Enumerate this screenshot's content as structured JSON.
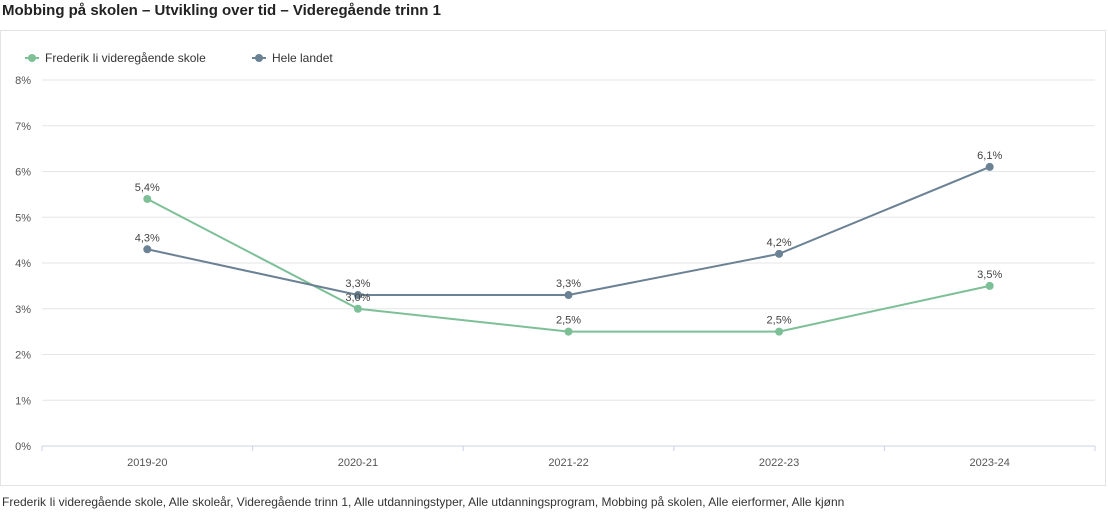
{
  "title": "Mobbing på skolen – Utvikling over tid – Videregående trinn 1",
  "footer": "Frederik Ii videregående skole, Alle skoleår, Videregående trinn 1, Alle utdanningstyper, Alle utdanningsprogram, Mobbing på skolen, Alle eierformer, Alle kjønn",
  "chart_data": {
    "type": "line",
    "categories": [
      "2019-20",
      "2020-21",
      "2021-22",
      "2022-23",
      "2023-24"
    ],
    "series": [
      {
        "name": "Frederik Ii videregående skole",
        "color": "#7dbf96",
        "values": [
          5.4,
          3.0,
          2.5,
          2.5,
          3.5
        ],
        "labels": [
          "5,4%",
          "3,0%",
          "2,5%",
          "2,5%",
          "3,5%"
        ]
      },
      {
        "name": "Hele landet",
        "color": "#6b8194",
        "values": [
          4.3,
          3.3,
          3.3,
          4.2,
          6.1
        ],
        "labels": [
          "4,3%",
          "3,3%",
          "3,3%",
          "4,2%",
          "6,1%"
        ]
      }
    ],
    "y_ticks": [
      "0%",
      "1%",
      "2%",
      "3%",
      "4%",
      "5%",
      "6%",
      "7%",
      "8%"
    ],
    "ylim": [
      0,
      8
    ],
    "grid": true,
    "legend_position": "top-left"
  }
}
